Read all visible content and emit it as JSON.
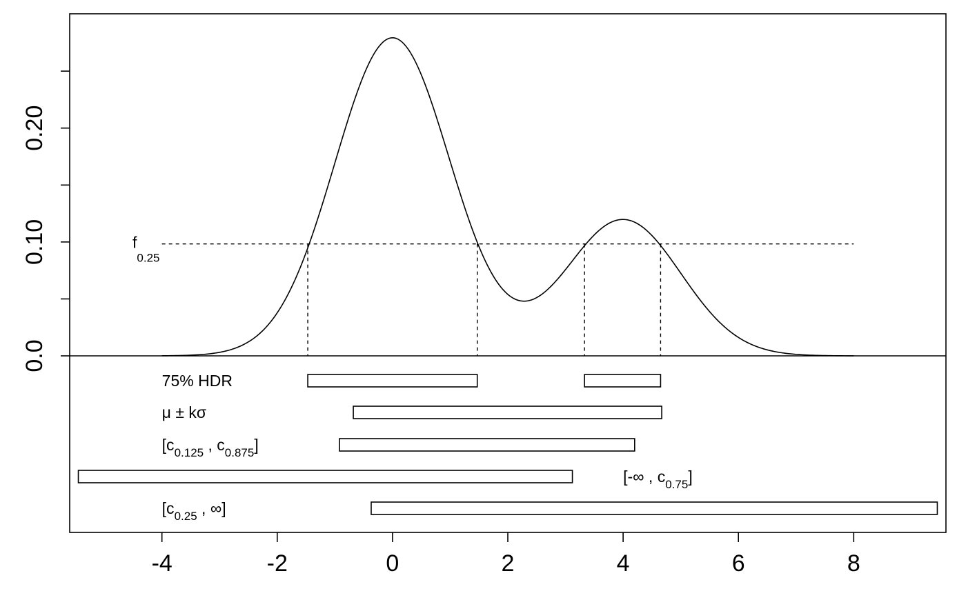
{
  "chart_data": {
    "type": "line",
    "title": "",
    "xlabel": "",
    "ylabel": "",
    "xlim": [
      -5.6,
      9.6
    ],
    "ylim": [
      0.0,
      0.284
    ],
    "x_ticks": [
      -4,
      -2,
      0,
      2,
      4,
      6,
      8
    ],
    "x_tick_labels": [
      "-4",
      "-2",
      "0",
      "2",
      "4",
      "6",
      "8"
    ],
    "y_ticks": [
      0.0,
      0.05,
      0.1,
      0.15,
      0.2,
      0.25
    ],
    "y_tick_labels": [
      "0.0",
      "",
      "0.10",
      "",
      "0.20",
      ""
    ],
    "density": {
      "name": "bimodal density",
      "components": [
        {
          "weight": 0.7,
          "mean": 0.0,
          "sd": 1.0
        },
        {
          "weight": 0.3,
          "mean": 4.0,
          "sd": 1.0
        }
      ],
      "x_range": [
        -4.0,
        8.0
      ]
    },
    "threshold": {
      "label_main": "f",
      "label_sub": "0.25",
      "value": 0.0983,
      "x_range": [
        -4.0,
        8.0
      ]
    },
    "hdr_boundaries": [
      -1.47,
      1.47,
      3.33,
      4.65
    ],
    "interval_rows": [
      {
        "label_parts": [
          {
            "t": "75% HDR",
            "sub": false
          }
        ],
        "segments": [
          [
            -1.47,
            1.47
          ],
          [
            3.33,
            4.65
          ]
        ],
        "label_x": -4.0
      },
      {
        "label_parts": [
          {
            "t": "μ ± kσ",
            "sub": false
          }
        ],
        "segments": [
          [
            -0.68,
            4.67
          ]
        ],
        "label_x": -4.0
      },
      {
        "label_parts": [
          {
            "t": "[c",
            "sub": false
          },
          {
            "t": "0.125",
            "sub": true
          },
          {
            "t": " , c",
            "sub": false
          },
          {
            "t": "0.875",
            "sub": true
          },
          {
            "t": "]",
            "sub": false
          }
        ],
        "segments": [
          [
            -0.92,
            4.2
          ]
        ],
        "label_x": -4.0
      },
      {
        "label_parts": [
          {
            "t": "[-∞ , c",
            "sub": false
          },
          {
            "t": "0.75",
            "sub": true
          },
          {
            "t": "]",
            "sub": false
          }
        ],
        "segments": [
          [
            -5.45,
            3.12
          ]
        ],
        "label_x": 4.0
      },
      {
        "label_parts": [
          {
            "t": "[c",
            "sub": false
          },
          {
            "t": "0.25",
            "sub": true
          },
          {
            "t": " , ∞]",
            "sub": false
          }
        ],
        "segments": [
          [
            -0.37,
            9.45
          ]
        ],
        "label_x": -4.0
      }
    ]
  }
}
